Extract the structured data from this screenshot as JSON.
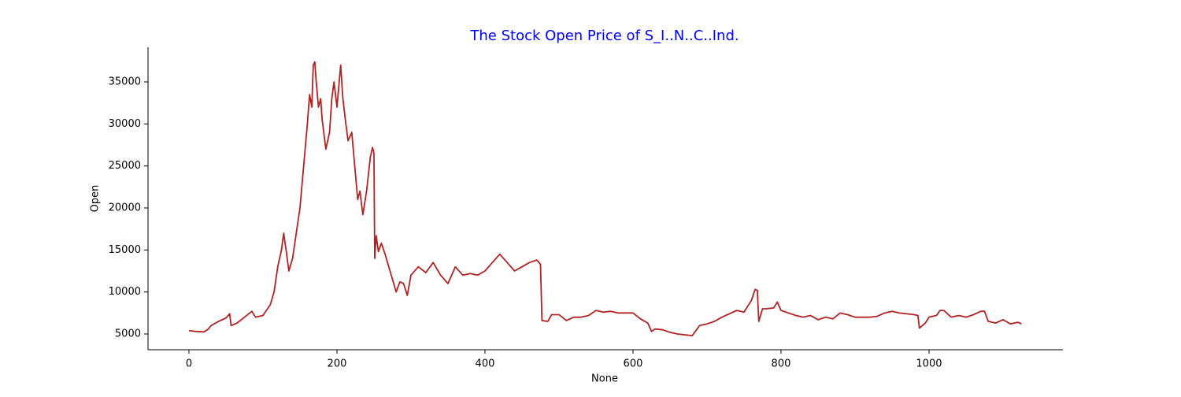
{
  "chart_data": {
    "type": "line",
    "title": "The Stock Open Price of S_I..N..C..Ind.",
    "title_color": "#0000ff",
    "x_label": "None",
    "y_label": "Open",
    "color": "#b22222",
    "x": [
      0,
      10,
      20,
      25,
      30,
      40,
      50,
      55,
      57,
      65,
      75,
      85,
      90,
      100,
      110,
      115,
      120,
      125,
      128,
      132,
      135,
      140,
      145,
      150,
      155,
      160,
      163,
      166,
      168,
      170,
      172,
      175,
      178,
      180,
      185,
      190,
      193,
      196,
      200,
      205,
      208,
      212,
      215,
      220,
      225,
      228,
      231,
      235,
      240,
      245,
      248,
      250,
      251,
      253,
      256,
      260,
      265,
      270,
      275,
      280,
      285,
      290,
      295,
      300,
      310,
      320,
      330,
      340,
      350,
      355,
      360,
      370,
      380,
      390,
      400,
      410,
      420,
      430,
      440,
      450,
      460,
      470,
      475,
      477,
      485,
      490,
      500,
      510,
      520,
      530,
      540,
      550,
      560,
      570,
      580,
      590,
      600,
      610,
      620,
      625,
      630,
      640,
      650,
      660,
      670,
      680,
      690,
      700,
      710,
      720,
      730,
      740,
      750,
      760,
      765,
      768,
      770,
      775,
      780,
      790,
      795,
      800,
      810,
      820,
      830,
      840,
      850,
      860,
      870,
      880,
      890,
      900,
      910,
      920,
      930,
      940,
      950,
      960,
      970,
      980,
      985,
      987,
      995,
      1000,
      1010,
      1015,
      1020,
      1030,
      1040,
      1050,
      1060,
      1070,
      1075,
      1080,
      1090,
      1100,
      1110,
      1120,
      1125
    ],
    "values": [
      5400,
      5300,
      5250,
      5500,
      6000,
      6500,
      6900,
      7400,
      6000,
      6300,
      7000,
      7700,
      7000,
      7200,
      8500,
      10000,
      13000,
      15000,
      17000,
      14500,
      12500,
      14000,
      17000,
      20000,
      25000,
      30000,
      33500,
      32000,
      37000,
      37400,
      35000,
      32000,
      33000,
      30500,
      27000,
      29000,
      33000,
      35000,
      32000,
      37000,
      33000,
      30000,
      28000,
      29000,
      24000,
      21000,
      22000,
      19200,
      22000,
      26000,
      27200,
      26500,
      14000,
      16700,
      14800,
      15800,
      14500,
      13000,
      11500,
      10000,
      11200,
      11000,
      9600,
      12000,
      13000,
      12300,
      13500,
      12000,
      11000,
      12000,
      13000,
      12000,
      12200,
      12000,
      12500,
      13500,
      14500,
      13500,
      12500,
      13000,
      13500,
      13800,
      13300,
      6600,
      6500,
      7300,
      7300,
      6600,
      7000,
      7000,
      7200,
      7800,
      7600,
      7700,
      7500,
      7500,
      7500,
      6800,
      6300,
      5300,
      5600,
      5500,
      5200,
      5000,
      4900,
      4800,
      6000,
      6200,
      6500,
      7000,
      7400,
      7800,
      7600,
      9000,
      10300,
      10200,
      6500,
      8000,
      8000,
      8100,
      8800,
      7800,
      7500,
      7200,
      7000,
      7200,
      6700,
      7000,
      6800,
      7500,
      7300,
      7000,
      7000,
      7000,
      7100,
      7500,
      7700,
      7500,
      7400,
      7300,
      7200,
      5700,
      6300,
      7000,
      7200,
      7800,
      7800,
      7000,
      7200,
      7000,
      7300,
      7700,
      7700,
      6500,
      6300,
      6700,
      6200,
      6400,
      6200
    ],
    "xlim": [
      -55.3,
      1180.9
    ],
    "xticks": [
      0,
      200,
      400,
      600,
      800,
      1000
    ],
    "ylim": [
      3125,
      39125
    ],
    "yticks": [
      5000,
      10000,
      15000,
      20000,
      25000,
      30000,
      35000
    ]
  }
}
